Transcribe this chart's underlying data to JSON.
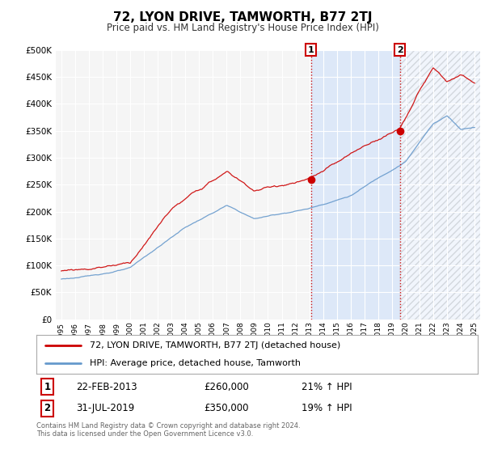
{
  "title": "72, LYON DRIVE, TAMWORTH, B77 2TJ",
  "subtitle": "Price paid vs. HM Land Registry's House Price Index (HPI)",
  "hpi_label": "HPI: Average price, detached house, Tamworth",
  "property_label": "72, LYON DRIVE, TAMWORTH, B77 2TJ (detached house)",
  "property_color": "#cc0000",
  "hpi_color": "#6699cc",
  "annotation1": {
    "label": "1",
    "date": "22-FEB-2013",
    "price": "£260,000",
    "hpi_pct": "21% ↑ HPI",
    "x_year": 2013.12
  },
  "annotation2": {
    "label": "2",
    "date": "31-JUL-2019",
    "price": "£350,000",
    "hpi_pct": "19% ↑ HPI",
    "x_year": 2019.58
  },
  "ann1_price": 260000,
  "ann2_price": 350000,
  "footer": "Contains HM Land Registry data © Crown copyright and database right 2024.\nThis data is licensed under the Open Government Licence v3.0.",
  "ylim": [
    0,
    500000
  ],
  "yticks": [
    0,
    50000,
    100000,
    150000,
    200000,
    250000,
    300000,
    350000,
    400000,
    450000,
    500000
  ],
  "background_color": "#ffffff",
  "plot_background": "#f5f5f5",
  "shade_color": "#dde8f8",
  "xmin": 1995,
  "xmax": 2025
}
